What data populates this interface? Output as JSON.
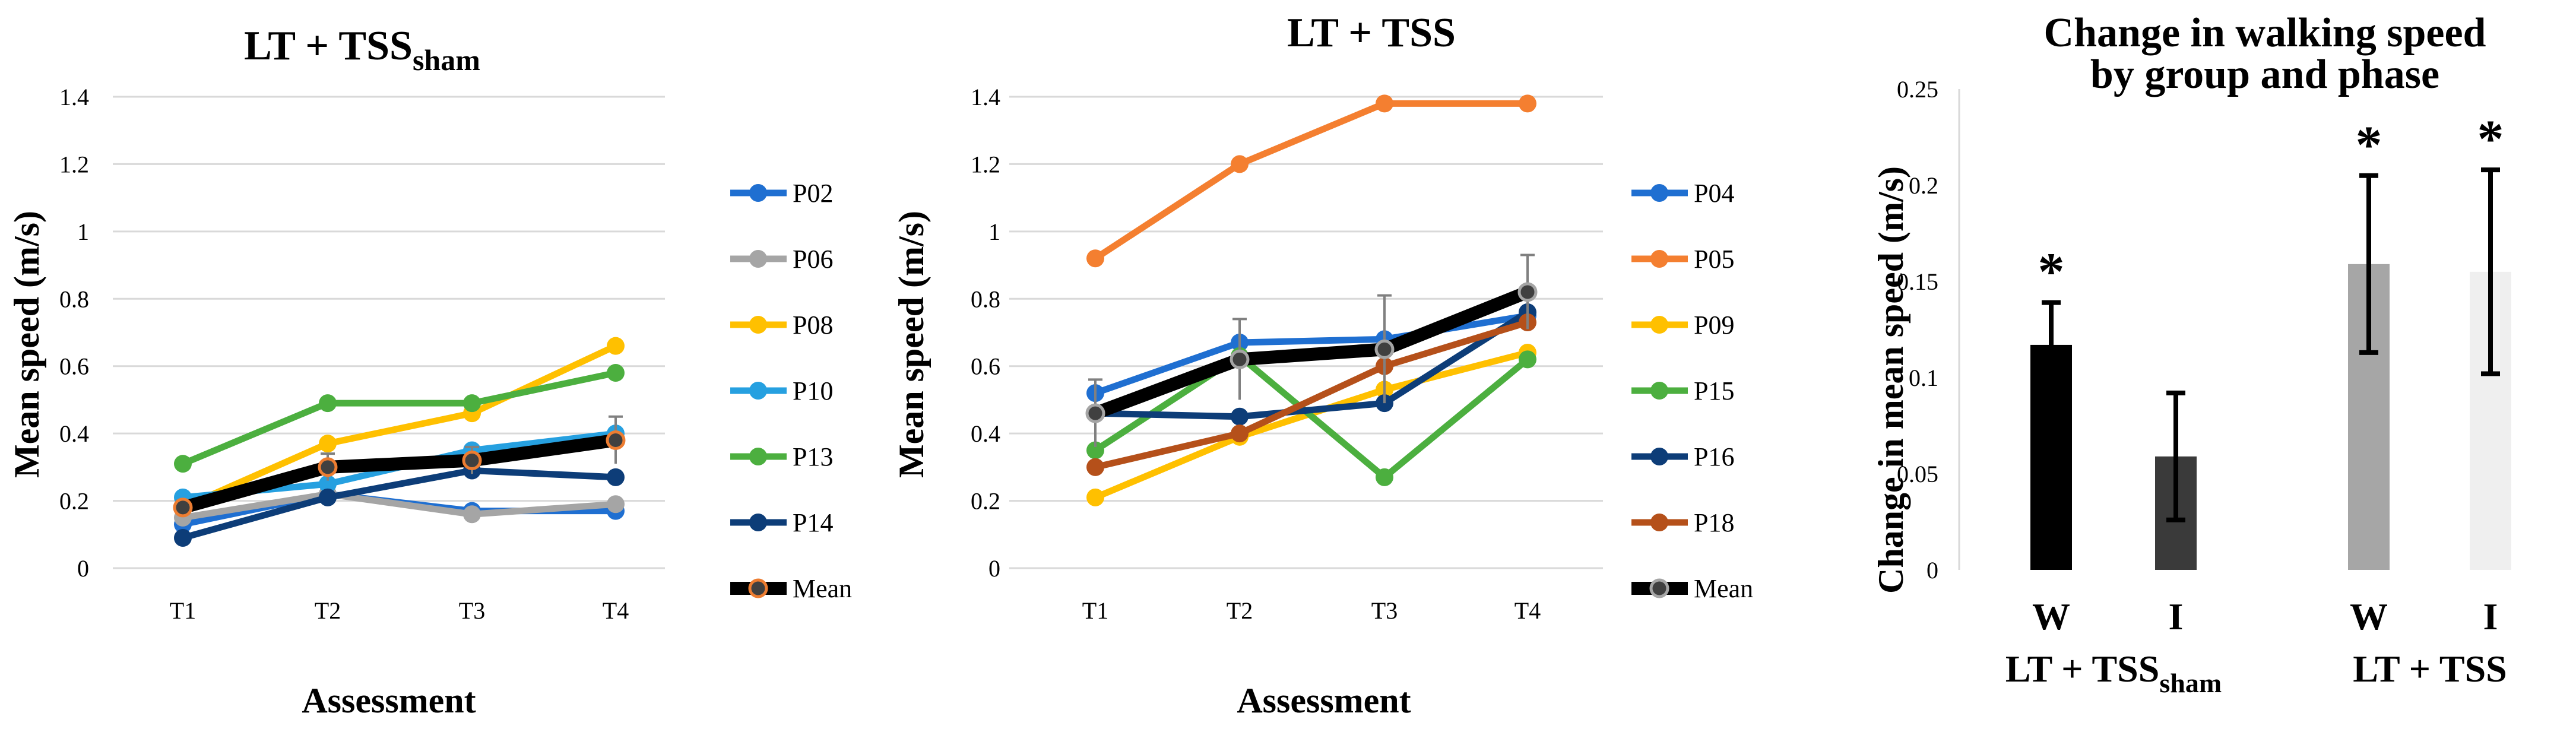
{
  "chart_data": [
    {
      "type": "line",
      "title": "LT + TSS",
      "title_sub": "sham",
      "xlabel": "Assessment",
      "ylabel": "Mean speed (m/s)",
      "ylim": [
        0,
        1.4
      ],
      "yticks": [
        "0",
        "0.2",
        "0.4",
        "0.6",
        "0.8",
        "1",
        "1.2",
        "1.4"
      ],
      "categories": [
        "T1",
        "T2",
        "T3",
        "T4"
      ],
      "series": [
        {
          "name": "P02",
          "color": "#1f6fd1",
          "values": [
            0.13,
            0.22,
            0.17,
            0.17
          ]
        },
        {
          "name": "P06",
          "color": "#a5a5a5",
          "values": [
            0.15,
            0.22,
            0.16,
            0.19
          ]
        },
        {
          "name": "P08",
          "color": "#ffc000",
          "values": [
            0.18,
            0.37,
            0.46,
            0.66
          ]
        },
        {
          "name": "P10",
          "color": "#26a0e0",
          "values": [
            0.21,
            0.25,
            0.35,
            0.4
          ]
        },
        {
          "name": "P13",
          "color": "#4caf3f",
          "values": [
            0.31,
            0.49,
            0.49,
            0.58
          ]
        },
        {
          "name": "P14",
          "color": "#0d3d78",
          "values": [
            0.09,
            0.21,
            0.29,
            0.27
          ]
        },
        {
          "name": "Mean",
          "color": "#000000",
          "marker_stroke": "#ed7d31",
          "values": [
            0.18,
            0.3,
            0.32,
            0.38
          ],
          "error": [
            0.02,
            0.04,
            0.04,
            0.07
          ]
        }
      ]
    },
    {
      "type": "line",
      "title": "LT + TSS",
      "xlabel": "Assessment",
      "ylabel": "Mean speed (m/s)",
      "ylim": [
        0,
        1.4
      ],
      "yticks": [
        "0",
        "0.2",
        "0.4",
        "0.6",
        "0.8",
        "1",
        "1.2",
        "1.4"
      ],
      "categories": [
        "T1",
        "T2",
        "T3",
        "T4"
      ],
      "series": [
        {
          "name": "P04",
          "color": "#1f6fd1",
          "values": [
            0.52,
            0.67,
            0.68,
            0.75
          ]
        },
        {
          "name": "P05",
          "color": "#f47f30",
          "values": [
            0.92,
            1.2,
            1.38,
            1.38
          ]
        },
        {
          "name": "P09",
          "color": "#ffc000",
          "values": [
            0.21,
            0.39,
            0.53,
            0.64
          ]
        },
        {
          "name": "P15",
          "color": "#4caf3f",
          "values": [
            0.35,
            0.63,
            0.27,
            0.62
          ]
        },
        {
          "name": "P16",
          "color": "#0d3d78",
          "values": [
            0.46,
            0.45,
            0.49,
            0.76
          ]
        },
        {
          "name": "P18",
          "color": "#b5501a",
          "values": [
            0.3,
            0.4,
            0.6,
            0.73
          ]
        },
        {
          "name": "Mean",
          "color": "#000000",
          "marker_stroke": "#a5a5a5",
          "values": [
            0.46,
            0.62,
            0.65,
            0.82
          ],
          "error": [
            0.1,
            0.12,
            0.16,
            0.11
          ]
        }
      ]
    },
    {
      "type": "bar",
      "title": "Change in walking speed",
      "title_line2": "by group and phase",
      "ylabel": "Change in mean speed (m/s)",
      "ylim": [
        0,
        0.25
      ],
      "yticks": [
        "0",
        "0.05",
        "0.1",
        "0.15",
        "0.2",
        "0.25"
      ],
      "categories": [
        "W",
        "I",
        "W",
        "I"
      ],
      "values": [
        0.117,
        0.059,
        0.159,
        0.155
      ],
      "error": [
        0.022,
        0.033,
        0.046,
        0.053
      ],
      "colors": [
        "#000000",
        "#3a3a3a",
        "#a6a6a6",
        "#efefef"
      ],
      "significant": [
        "*",
        "",
        "*",
        "*"
      ],
      "groups": [
        {
          "label": "LT + TSS",
          "sub": "sham"
        },
        {
          "label": "LT + TSS",
          "sub": ""
        }
      ]
    }
  ]
}
